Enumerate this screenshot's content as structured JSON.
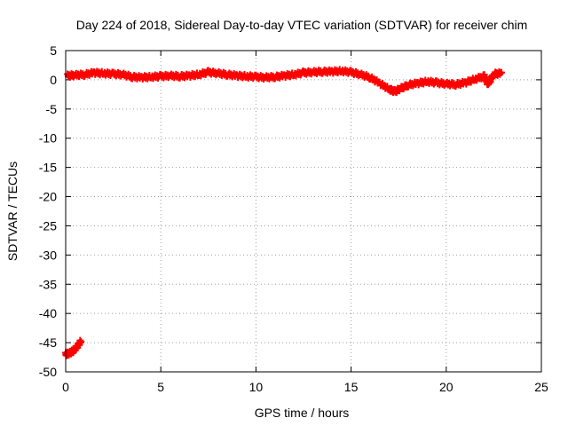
{
  "chart_data": {
    "type": "scatter",
    "title": "Day 224 of 2018, Sidereal Day-to-day VTEC variation (SDTVAR) for receiver chim",
    "xlabel": "GPS time / hours",
    "ylabel": "SDTVAR / TECUs",
    "xlim": [
      0,
      25
    ],
    "ylim": [
      -50,
      5
    ],
    "xticks": [
      0,
      5,
      10,
      15,
      20,
      25
    ],
    "yticks": [
      5,
      0,
      -5,
      -10,
      -15,
      -20,
      -25,
      -30,
      -35,
      -40,
      -45,
      -50
    ],
    "grid": true,
    "marker": "plus",
    "series": [
      {
        "name": "SDTVAR",
        "color": "#ff0000",
        "points": [
          [
            0.0,
            -47.0
          ],
          [
            0.2,
            -46.8
          ],
          [
            0.4,
            -46.4
          ],
          [
            0.6,
            -45.7
          ],
          [
            0.8,
            -44.7
          ],
          [
            0.1,
            0.7
          ],
          [
            0.5,
            0.8
          ],
          [
            1.0,
            0.9
          ],
          [
            1.5,
            1.2
          ],
          [
            2.0,
            1.1
          ],
          [
            2.5,
            1.0
          ],
          [
            3.0,
            0.9
          ],
          [
            3.5,
            0.5
          ],
          [
            4.0,
            0.4
          ],
          [
            4.5,
            0.5
          ],
          [
            5.0,
            0.6
          ],
          [
            5.5,
            0.7
          ],
          [
            6.0,
            0.6
          ],
          [
            6.5,
            0.7
          ],
          [
            7.0,
            0.9
          ],
          [
            7.5,
            1.3
          ],
          [
            8.0,
            1.1
          ],
          [
            8.5,
            0.9
          ],
          [
            9.0,
            0.7
          ],
          [
            9.5,
            0.6
          ],
          [
            10.0,
            0.5
          ],
          [
            10.5,
            0.4
          ],
          [
            11.0,
            0.5
          ],
          [
            11.5,
            0.7
          ],
          [
            12.0,
            0.9
          ],
          [
            12.5,
            1.2
          ],
          [
            13.0,
            1.3
          ],
          [
            13.5,
            1.4
          ],
          [
            14.0,
            1.4
          ],
          [
            14.5,
            1.5
          ],
          [
            15.0,
            1.3
          ],
          [
            15.5,
            0.9
          ],
          [
            16.0,
            0.4
          ],
          [
            16.5,
            -0.6
          ],
          [
            17.0,
            -1.6
          ],
          [
            17.3,
            -2.0
          ],
          [
            17.6,
            -1.5
          ],
          [
            18.0,
            -0.9
          ],
          [
            18.5,
            -0.6
          ],
          [
            19.0,
            -0.3
          ],
          [
            19.5,
            -0.5
          ],
          [
            20.0,
            -0.7
          ],
          [
            20.5,
            -0.8
          ],
          [
            21.0,
            -0.5
          ],
          [
            21.5,
            0.1
          ],
          [
            22.0,
            0.6
          ],
          [
            22.2,
            -0.8
          ],
          [
            22.5,
            1.0
          ],
          [
            22.9,
            1.1
          ]
        ]
      }
    ]
  }
}
